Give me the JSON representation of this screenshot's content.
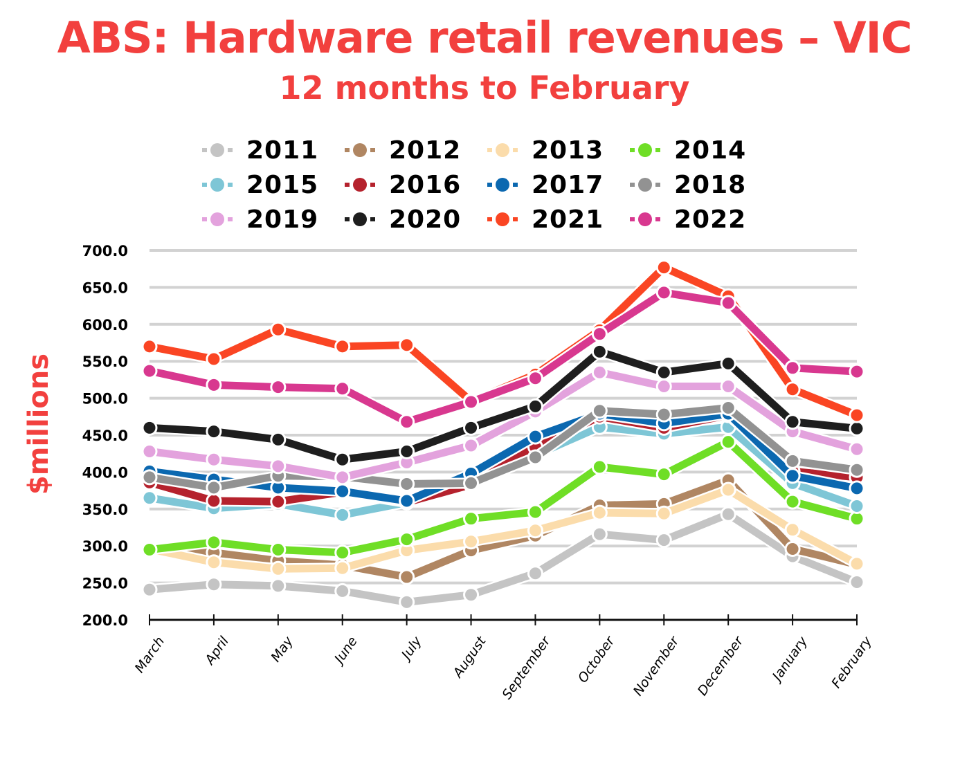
{
  "chart_data": {
    "type": "line",
    "title": "ABS: Hardware retail revenues – VIC",
    "subtitle": "12 months to February",
    "xlabel": "",
    "ylabel": "$millions",
    "ylim": [
      200,
      700
    ],
    "yticks": [
      "700.0",
      "650.0",
      "600.0",
      "550.0",
      "500.0",
      "450.0",
      "400.0",
      "350.0",
      "300.0",
      "250.0",
      "200.0"
    ],
    "ytick_values": [
      700,
      650,
      600,
      550,
      500,
      450,
      400,
      350,
      300,
      250,
      200
    ],
    "grid": true,
    "legend_position": "top",
    "categories": [
      "March",
      "April",
      "May",
      "June",
      "July",
      "August",
      "September",
      "October",
      "November",
      "December",
      "January",
      "February"
    ],
    "series": [
      {
        "name": "2011",
        "color": "#c4c4c4",
        "values": [
          241,
          248,
          246,
          239,
          224,
          234,
          263,
          316,
          308,
          343,
          286,
          251
        ]
      },
      {
        "name": "2012",
        "color": "#b08662",
        "values": [
          294,
          291,
          280,
          274,
          258,
          294,
          314,
          355,
          357,
          389,
          296,
          275
        ]
      },
      {
        "name": "2013",
        "color": "#fbdcab",
        "values": [
          296,
          278,
          269,
          270,
          294,
          306,
          321,
          345,
          344,
          376,
          322,
          276
        ]
      },
      {
        "name": "2014",
        "color": "#6fde26",
        "values": [
          295,
          305,
          295,
          291,
          309,
          337,
          346,
          407,
          397,
          441,
          360,
          337
        ]
      },
      {
        "name": "2015",
        "color": "#7ec6d6",
        "values": [
          365,
          351,
          357,
          342,
          359,
          384,
          423,
          461,
          452,
          461,
          385,
          354
        ]
      },
      {
        "name": "2016",
        "color": "#b5222d",
        "values": [
          386,
          361,
          360,
          373,
          359,
          383,
          434,
          475,
          460,
          477,
          401,
          393
        ]
      },
      {
        "name": "2017",
        "color": "#0b68b0",
        "values": [
          401,
          390,
          379,
          374,
          361,
          398,
          448,
          479,
          466,
          479,
          395,
          378
        ]
      },
      {
        "name": "2018",
        "color": "#929292",
        "values": [
          393,
          379,
          395,
          394,
          384,
          385,
          420,
          483,
          478,
          487,
          415,
          403
        ]
      },
      {
        "name": "2019",
        "color": "#e3a2dd",
        "values": [
          428,
          417,
          408,
          393,
          413,
          436,
          482,
          535,
          516,
          516,
          455,
          431
        ]
      },
      {
        "name": "2020",
        "color": "#1e1e1e",
        "values": [
          460,
          455,
          444,
          417,
          428,
          460,
          489,
          563,
          535,
          547,
          468,
          459
        ]
      },
      {
        "name": "2021",
        "color": "#fa4523",
        "values": [
          570,
          553,
          593,
          570,
          572,
          496,
          532,
          592,
          677,
          638,
          512,
          477
        ]
      },
      {
        "name": "2022",
        "color": "#d8388f",
        "values": [
          537,
          518,
          515,
          513,
          468,
          495,
          527,
          587,
          643,
          629,
          541,
          536
        ]
      }
    ]
  }
}
